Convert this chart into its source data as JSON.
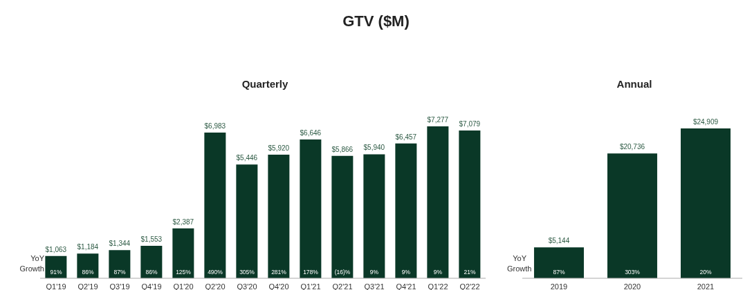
{
  "chart_data": [
    {
      "type": "other",
      "title": "GTV ($M)"
    },
    {
      "type": "bar",
      "title": "Quarterly",
      "categories": [
        "Q1'19",
        "Q2'19",
        "Q3'19",
        "Q4'19",
        "Q1'20",
        "Q2'20",
        "Q3'20",
        "Q4'20",
        "Q1'21",
        "Q2'21",
        "Q3'21",
        "Q4'21",
        "Q1'22",
        "Q2'22"
      ],
      "values": [
        1063,
        1184,
        1344,
        1553,
        2387,
        6983,
        5446,
        5920,
        6646,
        5866,
        5940,
        6457,
        7277,
        7079
      ],
      "value_labels": [
        "$1,063",
        "$1,184",
        "$1,344",
        "$1,553",
        "$2,387",
        "$6,983",
        "$5,446",
        "$5,920",
        "$6,646",
        "$5,866",
        "$5,940",
        "$6,457",
        "$7,277",
        "$7,079"
      ],
      "color": "#0a3827",
      "grid": false,
      "legend": false,
      "annotations": [
        "YoY Growth",
        {
          "text": "91%",
          "x": "Q1'19",
          "y": 0
        },
        {
          "text": "86%",
          "x": "Q2'19",
          "y": 0
        },
        {
          "text": "87%",
          "x": "Q3'19",
          "y": 0
        },
        {
          "text": "86%",
          "x": "Q4'19",
          "y": 0
        },
        {
          "text": "125%",
          "x": "Q1'20",
          "y": 0
        },
        {
          "text": "490%",
          "x": "Q2'20",
          "y": 0
        },
        {
          "text": "305%",
          "x": "Q3'20",
          "y": 0
        },
        {
          "text": "281%",
          "x": "Q4'20",
          "y": 0
        },
        {
          "text": "178%",
          "x": "Q1'21",
          "y": 0
        },
        {
          "text": "(16)%",
          "x": "Q2'21",
          "y": 0
        },
        {
          "text": "9%",
          "x": "Q3'21",
          "y": 0
        },
        {
          "text": "9%",
          "x": "Q4'21",
          "y": 0
        },
        {
          "text": "9%",
          "x": "Q1'22",
          "y": 0
        },
        {
          "text": "21%",
          "x": "Q2'22",
          "y": 0
        }
      ]
    },
    {
      "type": "bar",
      "title": "Annual",
      "categories": [
        "2019",
        "2020",
        "2021"
      ],
      "values": [
        5144,
        20736,
        24909
      ],
      "value_labels": [
        "$5,144",
        "$20,736",
        "$24,909"
      ],
      "color": "#0a3827",
      "grid": false,
      "legend": false,
      "annotations": [
        "YoY Growth",
        {
          "text": "87%",
          "x": "2019",
          "y": 0
        },
        {
          "text": "303%",
          "x": "2020",
          "y": 0
        },
        {
          "text": "20%",
          "x": "2021",
          "y": 0
        }
      ]
    }
  ]
}
